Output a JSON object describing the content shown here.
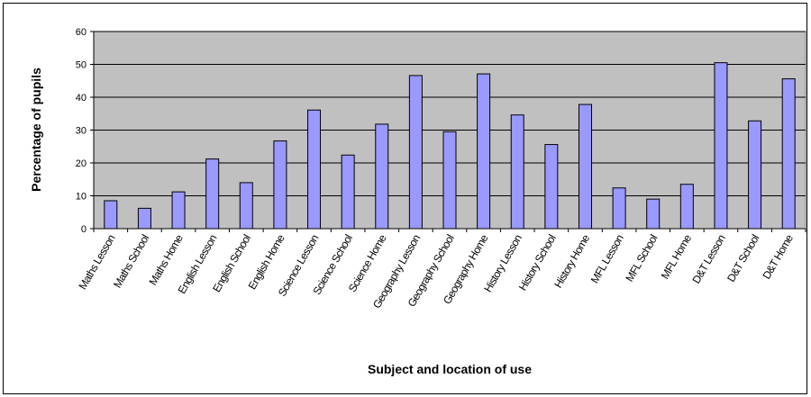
{
  "chart_data": {
    "type": "bar",
    "title": "",
    "xlabel": "Subject and location of use",
    "ylabel": "Percentage of pupils",
    "ylim": [
      0,
      60
    ],
    "yticks": [
      0,
      10,
      20,
      30,
      40,
      50,
      60
    ],
    "grid": true,
    "legend": "none",
    "categories": [
      "Maths Lesson",
      "Maths School",
      "Maths Home",
      "English Lesson",
      "English School",
      "English Home",
      "Science Lesson",
      "Science School",
      "Science Home",
      "Geography Lesson",
      "Geography School",
      "Geography Home",
      "History Lesson",
      "History School",
      "History Home",
      "MFL Lesson",
      "MFL School",
      "MFL Home",
      "D&T Lesson",
      "D&T School",
      "D&T Home"
    ],
    "values": [
      8.5,
      6.2,
      11.2,
      21.2,
      14.0,
      26.7,
      36.1,
      22.4,
      31.8,
      46.6,
      29.5,
      47.1,
      34.6,
      25.6,
      37.8,
      12.4,
      9.0,
      13.5,
      50.5,
      32.8,
      45.6
    ],
    "colors": {
      "bar_fill": "#9999ff",
      "bar_stroke": "#000000",
      "plot_background": "#c0c0c0",
      "gridline": "#000000"
    }
  }
}
